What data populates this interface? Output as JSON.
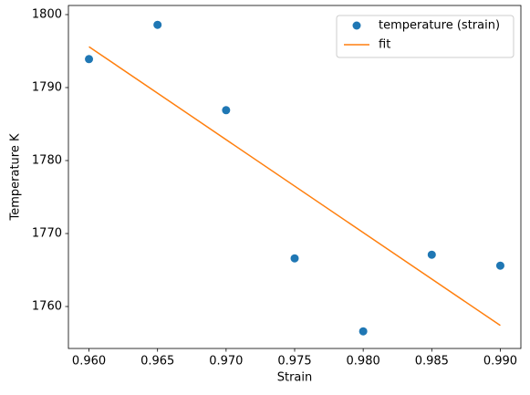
{
  "chart_data": {
    "type": "scatter",
    "xlabel": "Strain",
    "ylabel": "Temperature K",
    "x": [
      0.96,
      0.965,
      0.97,
      0.975,
      0.98,
      0.985,
      0.99
    ],
    "series": [
      {
        "name": "temperature (strain)",
        "color": "#1f77b4",
        "type": "scatter",
        "values": [
          1793.9,
          1798.6,
          1786.9,
          1766.6,
          1756.6,
          1767.1,
          1765.6
        ]
      },
      {
        "name": "fit",
        "color": "#ff7f0e",
        "type": "line",
        "x": [
          0.96,
          0.99
        ],
        "values": [
          1795.6,
          1757.4
        ]
      }
    ],
    "xlim": [
      0.9585,
      0.9915
    ],
    "ylim": [
      1754.25,
      1801.25
    ],
    "xticks": [
      {
        "value": 0.96,
        "label": "0.960"
      },
      {
        "value": 0.965,
        "label": "0.965"
      },
      {
        "value": 0.97,
        "label": "0.970"
      },
      {
        "value": 0.975,
        "label": "0.975"
      },
      {
        "value": 0.98,
        "label": "0.980"
      },
      {
        "value": 0.985,
        "label": "0.985"
      },
      {
        "value": 0.99,
        "label": "0.990"
      }
    ],
    "yticks": [
      1760,
      1770,
      1780,
      1790,
      1800
    ],
    "legend": "upper right"
  }
}
